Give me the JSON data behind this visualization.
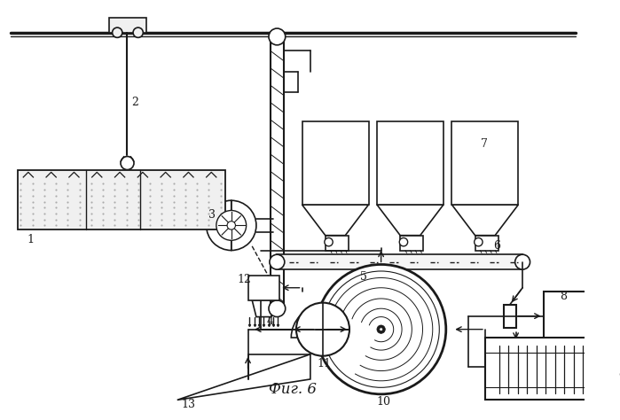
{
  "title": "Фиг. 6",
  "background": "#ffffff",
  "line_color": "#1a1a1a",
  "figsize": [
    6.99,
    4.74
  ],
  "dpi": 100
}
